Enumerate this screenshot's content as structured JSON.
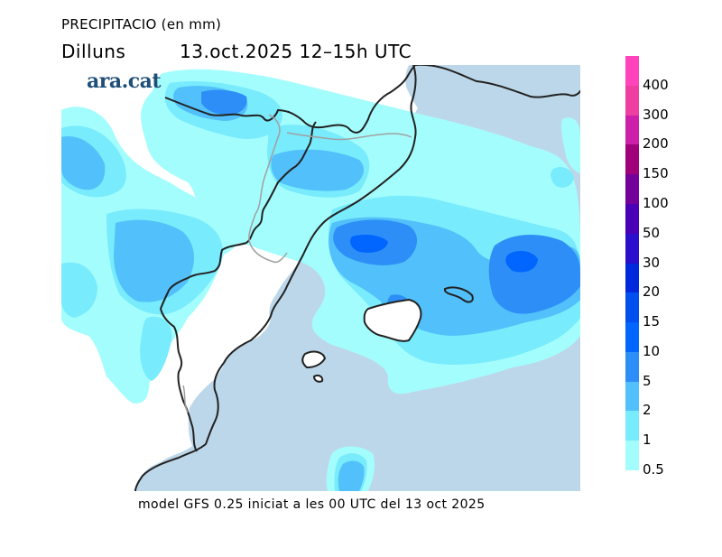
{
  "header": {
    "title": "PRECIPITACIO (en mm)",
    "day": "Dilluns",
    "datetime": "13.oct.2025  12–15h UTC"
  },
  "logo": "ara.cat",
  "footer": "model GFS 0.25 iniciat a les 00 UTC del 13 oct 2025",
  "map": {
    "region": "Catalonia, Valencia, Balearic Islands and western Mediterranean",
    "sea_color": "#bdd7ea",
    "land_color": "#ffffff",
    "coast_color": "#222222",
    "border_color": "#a0a0a0",
    "icon": "precipitation-map"
  },
  "legend": {
    "unit": "mm",
    "bands": [
      {
        "min": 400,
        "color": "#ff44bb"
      },
      {
        "min": 300,
        "color": "#ee3ea0"
      },
      {
        "min": 200,
        "color": "#cc1faa"
      },
      {
        "min": 150,
        "color": "#a0007a"
      },
      {
        "min": 100,
        "color": "#730099"
      },
      {
        "min": 50,
        "color": "#4a00b6"
      },
      {
        "min": 30,
        "color": "#2a10cc"
      },
      {
        "min": 20,
        "color": "#0028dc"
      },
      {
        "min": 15,
        "color": "#0050f0"
      },
      {
        "min": 10,
        "color": "#0066ff"
      },
      {
        "min": 5,
        "color": "#2d8ef7"
      },
      {
        "min": 2,
        "color": "#52c0fa"
      },
      {
        "min": 1,
        "color": "#78ebfc"
      },
      {
        "min": 0.5,
        "color": "#a4fdfd"
      }
    ],
    "labels": [
      "400",
      "300",
      "200",
      "150",
      "100",
      "50",
      "30",
      "20",
      "15",
      "10",
      "5",
      "2",
      "1",
      "0.5"
    ]
  }
}
